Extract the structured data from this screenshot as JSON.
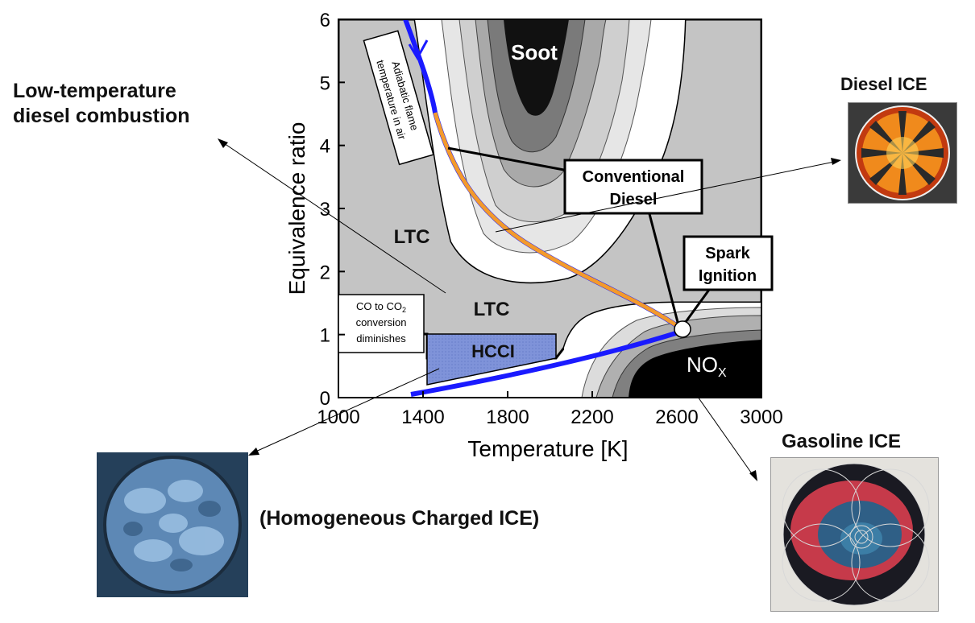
{
  "chart_data": {
    "type": "diagram",
    "xlabel": "Temperature [K]",
    "ylabel": "Equivalence ratio",
    "xlim": [
      1000,
      3000
    ],
    "ylim": [
      0,
      6
    ],
    "x_ticks": [
      "1000",
      "1400",
      "1800",
      "2200",
      "2600",
      "3000"
    ],
    "y_ticks": [
      "0",
      "1",
      "2",
      "3",
      "4",
      "5",
      "6"
    ],
    "regions": {
      "soot": "Soot",
      "nox_main": "NO",
      "nox_sub": "X",
      "ltc_upper": "LTC",
      "ltc_lower": "LTC",
      "hcci": "HCCI"
    },
    "boxes": {
      "conventional_diesel_line1": "Conventional",
      "conventional_diesel_line2": "Diesel",
      "spark_ignition_line1": "Spark",
      "spark_ignition_line2": "Ignition",
      "adiabatic_line1": "Adiabatic flame",
      "adiabatic_line2": "temperature in air",
      "co_line1": "CO to CO",
      "co_sub": "2",
      "co_line2": "conversion",
      "co_line3": "diminishes"
    },
    "colors": {
      "ltc_region": "#c4c4c4",
      "hcci_region": "#7f93d9",
      "adiabatic_curve": "#1a1aff",
      "diesel_path": "#f39a2c",
      "soot_core": "#111111",
      "nox_core": "#000000"
    }
  },
  "annotations": {
    "ltdc_line1": "Low-temperature",
    "ltdc_line2": "diesel combustion",
    "diesel_ice": "Diesel ICE",
    "gasoline_ice": "Gasoline ICE",
    "homogeneous": "(Homogeneous Charged ICE)"
  }
}
